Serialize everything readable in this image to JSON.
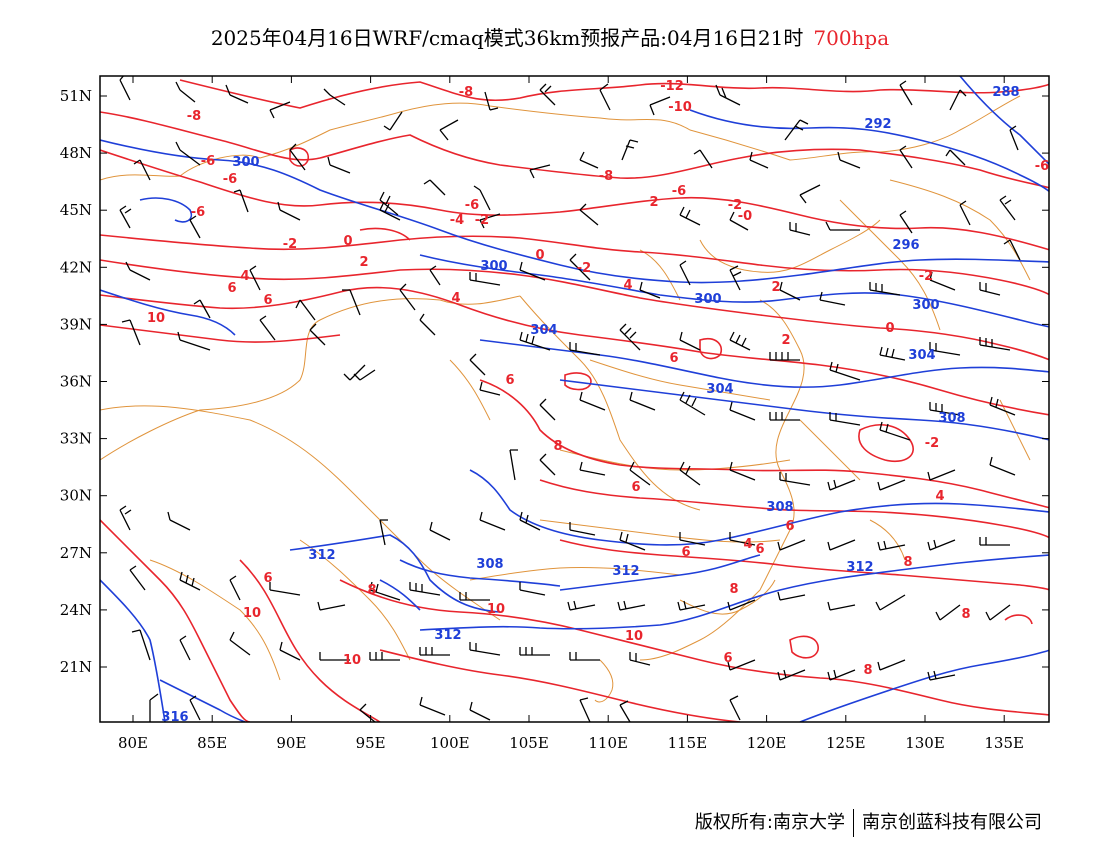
{
  "header": {
    "title": "2025年04月16日WRF/cmaq模式36km预报产品:04月16日21时",
    "level": "700hpa"
  },
  "footer": {
    "copyright": "版权所有:南京大学",
    "company": "南京创蓝科技有限公司"
  },
  "map": {
    "lon_ticks": [
      "80E",
      "85E",
      "90E",
      "95E",
      "100E",
      "105E",
      "110E",
      "115E",
      "120E",
      "125E",
      "130E",
      "135E"
    ],
    "lat_ticks": [
      "51N",
      "48N",
      "45N",
      "42N",
      "39N",
      "36N",
      "33N",
      "30N",
      "27N",
      "24N",
      "21N"
    ],
    "colors": {
      "temperature": "#e8252d",
      "height": "#1f3fd8",
      "boundary": "#e0943c",
      "barb": "#000000"
    },
    "temperature_labels": [
      "-12",
      "-8",
      "-8",
      "-6",
      "-6",
      "-8",
      "-10",
      "-6",
      "-4",
      "-2",
      "-2",
      "0",
      "-2",
      "-0",
      "0",
      "-2",
      "2",
      "4",
      "6",
      "10",
      "6",
      "4",
      "2",
      "4",
      "2",
      "0",
      "2",
      "-2",
      "6",
      "6",
      "8",
      "-6",
      "-6",
      "4",
      "-2",
      "6",
      "6",
      "8",
      "6",
      "8",
      "10",
      "10",
      "10",
      "10",
      "6",
      "4",
      "6",
      "8",
      "8",
      "8",
      "6",
      "-6"
    ],
    "height_labels": [
      "288",
      "292",
      "300",
      "300",
      "296",
      "300",
      "300",
      "304",
      "304",
      "304",
      "308",
      "308",
      "308",
      "312",
      "312",
      "312",
      "312",
      "316"
    ]
  }
}
